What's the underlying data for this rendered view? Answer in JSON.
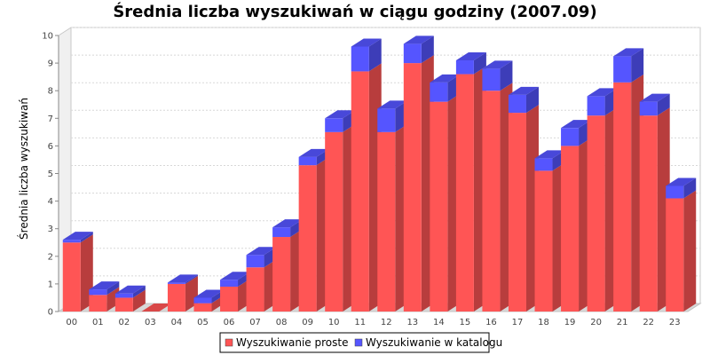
{
  "chart_data": {
    "type": "bar",
    "stacked": true,
    "three_d": true,
    "title": "Średnia liczba wyszukiwań w ciągu godziny (2007.09)",
    "xlabel": "",
    "ylabel": "Średnia liczba wyszukiwań",
    "ylim": [
      0,
      10
    ],
    "yticks": [
      0,
      1,
      2,
      3,
      4,
      5,
      6,
      7,
      8,
      9,
      10
    ],
    "grid": true,
    "legend_position": "bottom",
    "categories": [
      "00",
      "01",
      "02",
      "03",
      "04",
      "05",
      "06",
      "07",
      "08",
      "09",
      "10",
      "11",
      "12",
      "13",
      "14",
      "15",
      "16",
      "17",
      "18",
      "19",
      "20",
      "21",
      "22",
      "23"
    ],
    "series": [
      {
        "name": "Wyszukiwanie proste",
        "color": "#ff5555",
        "values": [
          2.5,
          0.6,
          0.5,
          0.0,
          1.0,
          0.3,
          0.9,
          1.6,
          2.7,
          5.3,
          6.5,
          8.7,
          6.5,
          9.0,
          7.6,
          8.6,
          8.0,
          7.2,
          5.1,
          6.0,
          7.1,
          8.3,
          7.1,
          4.1
        ]
      },
      {
        "name": "Wyszukiwanie w katalogu",
        "color": "#5555ff",
        "values": [
          0.1,
          0.2,
          0.15,
          0.0,
          0.05,
          0.2,
          0.25,
          0.45,
          0.35,
          0.3,
          0.5,
          0.9,
          0.85,
          0.7,
          0.7,
          0.5,
          0.8,
          0.65,
          0.45,
          0.65,
          0.7,
          0.95,
          0.5,
          0.45
        ]
      }
    ]
  }
}
